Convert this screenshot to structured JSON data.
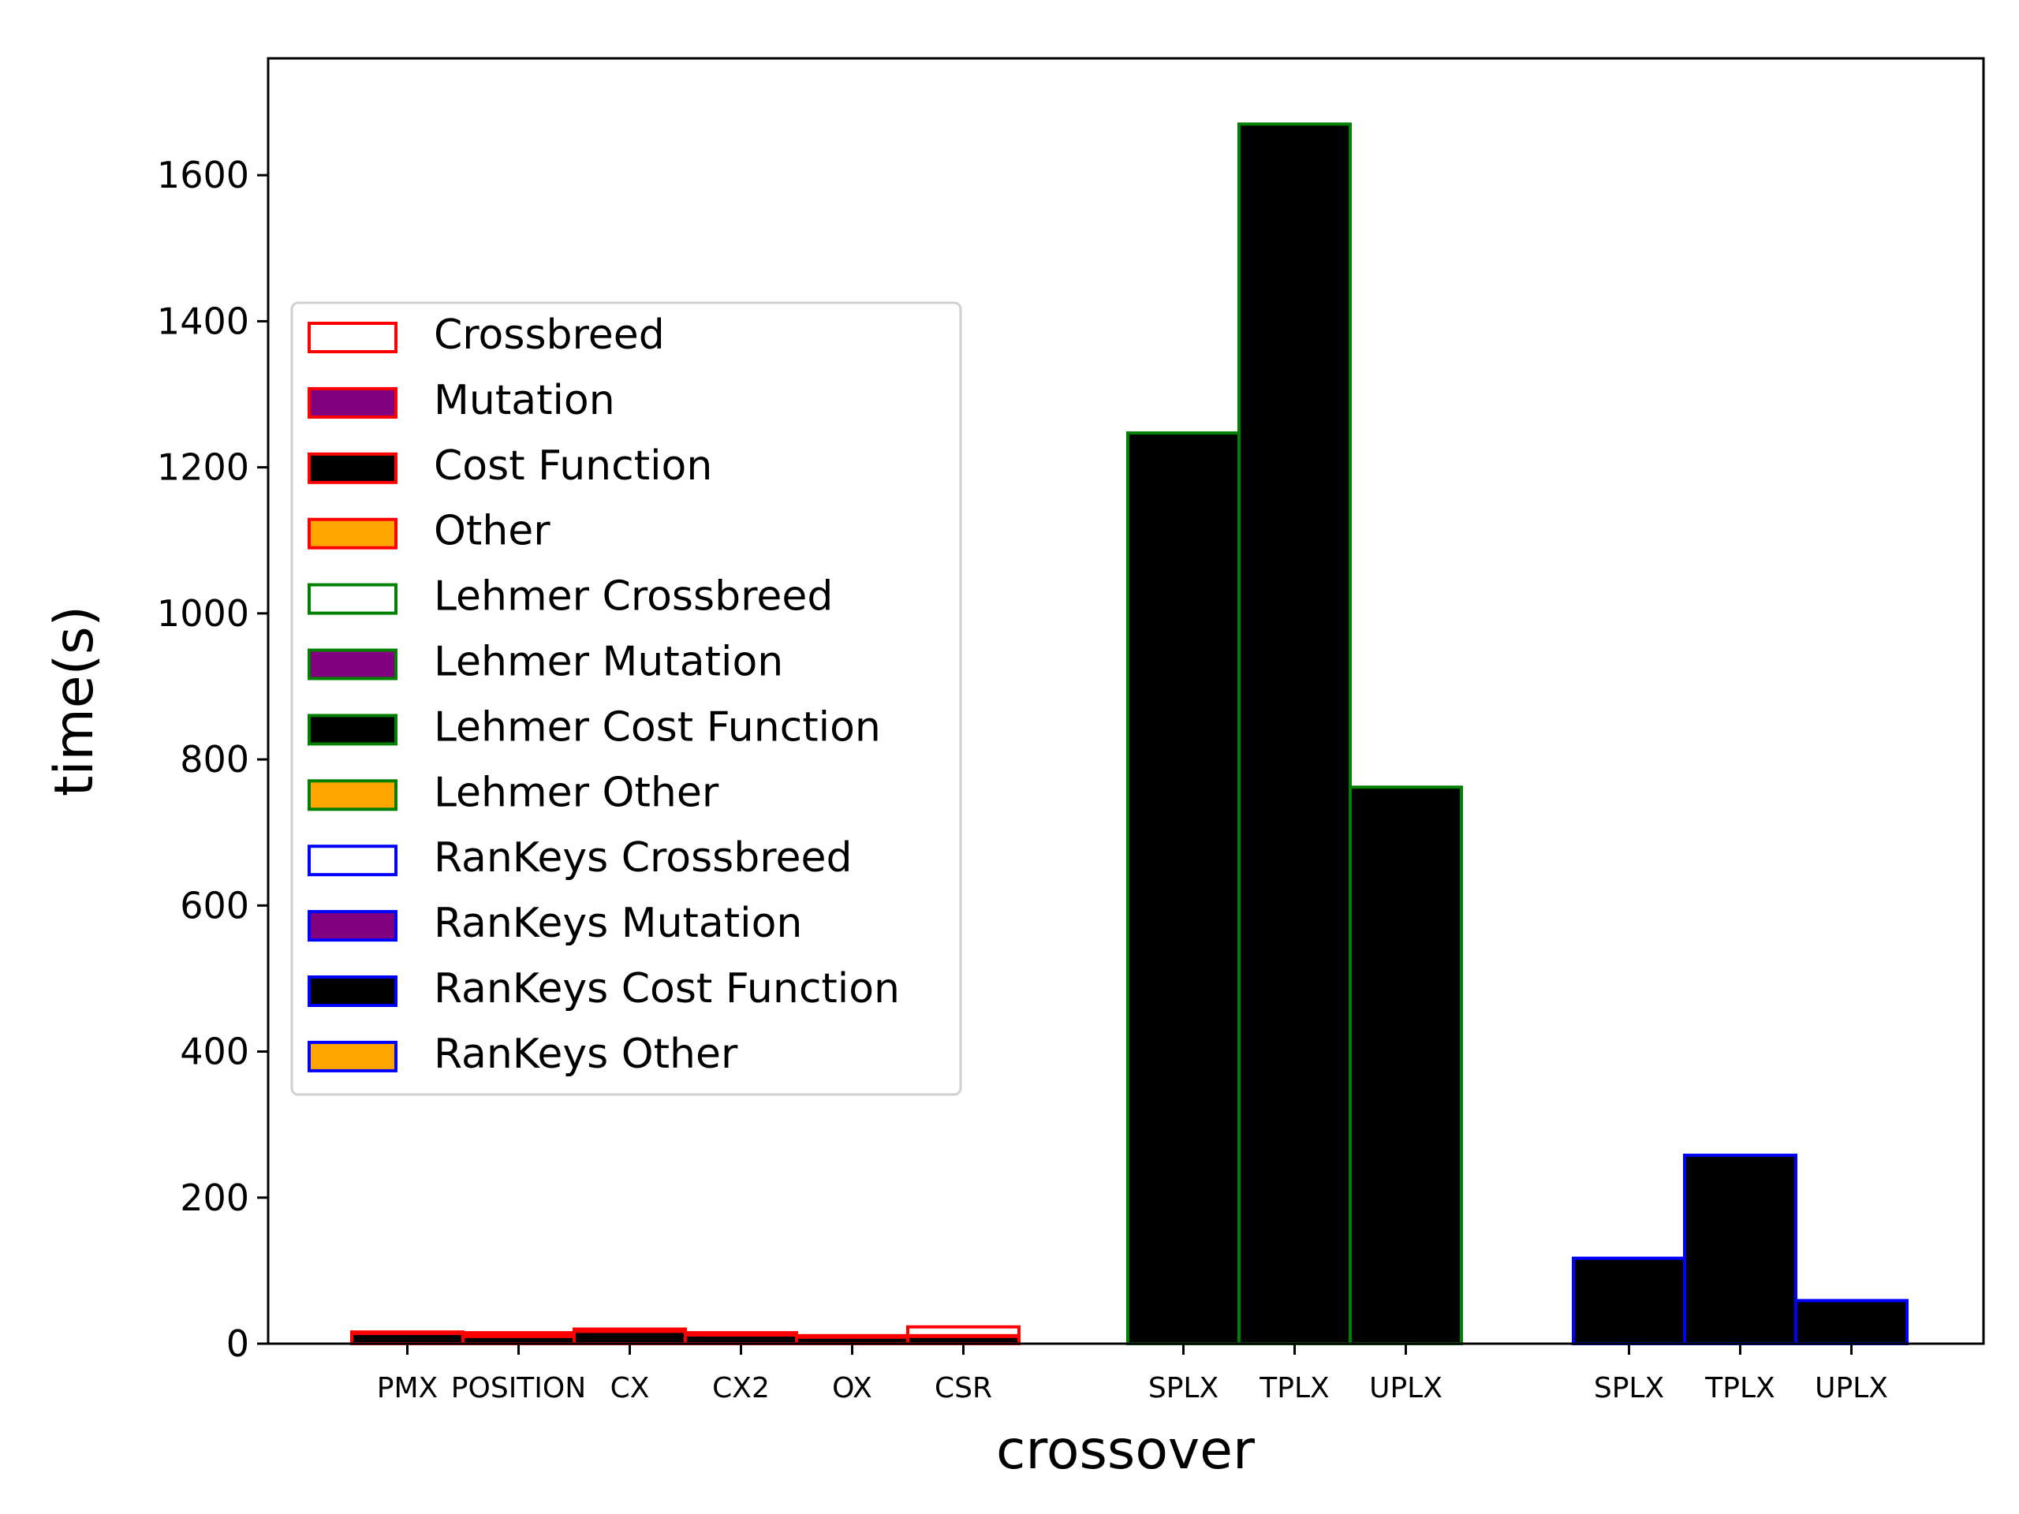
{
  "chart_data": {
    "type": "bar",
    "stacked": true,
    "xlabel": "crossover",
    "ylabel": "time(s)",
    "ylim": [
      0,
      1760
    ],
    "yticks": [
      0,
      200,
      400,
      600,
      800,
      1000,
      1200,
      1400,
      1600
    ],
    "grid": false,
    "legend_position": "center-left",
    "segment_colors": {
      "Crossbreed": "#ffffff",
      "Mutation": "#800080",
      "Cost Function": "#000000",
      "Other": "#ffa500"
    },
    "groups": [
      {
        "edge_color": "#ff0000",
        "categories": [
          {
            "label": "PMX",
            "Crossbreed": 1,
            "Mutation": 0.5,
            "Cost Function": 14,
            "Other": 0.5
          },
          {
            "label": "POSITION",
            "Crossbreed": 4,
            "Mutation": 0.5,
            "Cost Function": 10,
            "Other": 0.5
          },
          {
            "label": "CX",
            "Crossbreed": 2,
            "Mutation": 0.5,
            "Cost Function": 17,
            "Other": 0.5
          },
          {
            "label": "CX2",
            "Crossbreed": 2,
            "Mutation": 0.5,
            "Cost Function": 12,
            "Other": 0.5
          },
          {
            "label": "OX",
            "Crossbreed": 1,
            "Mutation": 0.5,
            "Cost Function": 9,
            "Other": 0.5
          },
          {
            "label": "CSR",
            "Crossbreed": 12,
            "Mutation": 0.5,
            "Cost Function": 10,
            "Other": 0.5
          }
        ]
      },
      {
        "edge_color": "#008000",
        "categories": [
          {
            "label": "SPLX",
            "Crossbreed": 0,
            "Mutation": 0,
            "Cost Function": 1247,
            "Other": 0
          },
          {
            "label": "TPLX",
            "Crossbreed": 0,
            "Mutation": 0,
            "Cost Function": 1670,
            "Other": 0
          },
          {
            "label": "UPLX",
            "Crossbreed": 0,
            "Mutation": 0,
            "Cost Function": 762,
            "Other": 0
          }
        ]
      },
      {
        "edge_color": "#0000ff",
        "categories": [
          {
            "label": "SPLX",
            "Crossbreed": 0,
            "Mutation": 0,
            "Cost Function": 117,
            "Other": 0
          },
          {
            "label": "TPLX",
            "Crossbreed": 0,
            "Mutation": 0,
            "Cost Function": 258,
            "Other": 0
          },
          {
            "label": "UPLX",
            "Crossbreed": 0,
            "Mutation": 0,
            "Cost Function": 59,
            "Other": 0
          }
        ]
      }
    ],
    "legend": [
      {
        "label": "Crossbreed",
        "fill": "#ffffff",
        "edge": "#ff0000"
      },
      {
        "label": "Mutation",
        "fill": "#800080",
        "edge": "#ff0000"
      },
      {
        "label": "Cost Function",
        "fill": "#000000",
        "edge": "#ff0000"
      },
      {
        "label": "Other",
        "fill": "#ffa500",
        "edge": "#ff0000"
      },
      {
        "label": "Lehmer Crossbreed",
        "fill": "#ffffff",
        "edge": "#008000"
      },
      {
        "label": "Lehmer Mutation",
        "fill": "#800080",
        "edge": "#008000"
      },
      {
        "label": "Lehmer Cost Function",
        "fill": "#000000",
        "edge": "#008000"
      },
      {
        "label": "Lehmer Other",
        "fill": "#ffa500",
        "edge": "#008000"
      },
      {
        "label": "RanKeys Crossbreed",
        "fill": "#ffffff",
        "edge": "#0000ff"
      },
      {
        "label": "RanKeys Mutation",
        "fill": "#800080",
        "edge": "#0000ff"
      },
      {
        "label": "RanKeys Cost Function",
        "fill": "#000000",
        "edge": "#0000ff"
      },
      {
        "label": "RanKeys Other",
        "fill": "#ffa500",
        "edge": "#0000ff"
      }
    ]
  }
}
